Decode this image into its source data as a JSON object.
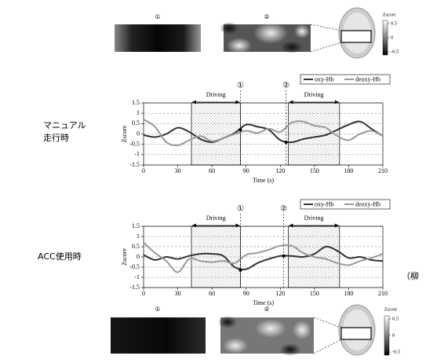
{
  "heatmaps": {
    "top": {
      "labels": [
        "①",
        "②"
      ],
      "colorbar": {
        "title": "Zscore",
        "ticks": [
          0.5,
          0,
          -0.5
        ]
      }
    },
    "bottom": {
      "labels": [
        "①",
        "②"
      ],
      "colorbar": {
        "title": "Zscore",
        "ticks": [
          0.5,
          0,
          -0.5
        ]
      }
    }
  },
  "side_labels": [
    [
      "マニュアル",
      "走行時"
    ],
    [
      "ACC使用時"
    ]
  ],
  "citation": "（柳",
  "chart_data": [
    {
      "type": "line",
      "xlabel": "Time (s)",
      "ylabel": "Zscore",
      "x": [
        0,
        10,
        20,
        30,
        40,
        50,
        60,
        70,
        80,
        90,
        100,
        110,
        120,
        130,
        140,
        150,
        160,
        170,
        180,
        190,
        200,
        210
      ],
      "series": [
        {
          "name": "oxy-Hb",
          "color": "#333333",
          "values": [
            -0.05,
            -0.15,
            0.0,
            0.3,
            0.1,
            -0.25,
            -0.4,
            -0.2,
            0.05,
            0.45,
            0.35,
            0.2,
            -0.3,
            -0.4,
            -0.25,
            -0.15,
            -0.05,
            0.2,
            0.45,
            0.6,
            0.25,
            -0.1
          ]
        },
        {
          "name": "deoxy-Hb",
          "color": "#999999",
          "values": [
            0.7,
            0.35,
            -0.4,
            -0.55,
            -0.3,
            -0.1,
            -0.35,
            -0.2,
            0.0,
            0.15,
            0.05,
            0.25,
            0.1,
            0.55,
            0.6,
            0.4,
            0.3,
            -0.1,
            -0.3,
            0.0,
            0.15,
            -0.1
          ]
        }
      ],
      "xlim": [
        0,
        210
      ],
      "ylim": [
        -1.5,
        1.5
      ],
      "xticks": [
        0,
        30,
        60,
        90,
        120,
        150,
        180,
        210
      ],
      "yticks": [
        1.5,
        1,
        0.5,
        0,
        -0.5,
        -1,
        -1.5
      ],
      "grid": true,
      "shaded_spans": [
        {
          "start": 42,
          "end": 85,
          "label": "Driving"
        },
        {
          "start": 127,
          "end": 172,
          "label": "Driving"
        }
      ],
      "markers": [
        {
          "x": 85,
          "y": 0.2,
          "label": "①"
        },
        {
          "x": 125,
          "y": -0.4,
          "label": "②"
        }
      ]
    },
    {
      "type": "line",
      "xlabel": "Time (s)",
      "ylabel": "Zscore",
      "x": [
        0,
        10,
        20,
        30,
        40,
        50,
        60,
        70,
        80,
        90,
        100,
        110,
        120,
        130,
        140,
        150,
        160,
        170,
        180,
        190,
        200,
        210
      ],
      "series": [
        {
          "name": "oxy-Hb",
          "color": "#333333",
          "values": [
            0.1,
            -0.15,
            0.0,
            -0.1,
            0.05,
            0.15,
            0.15,
            0.05,
            -0.5,
            -0.6,
            -0.3,
            -0.1,
            0.05,
            0.05,
            0.0,
            0.15,
            0.5,
            0.3,
            -0.05,
            0.0,
            -0.15,
            -0.2
          ]
        },
        {
          "name": "deoxy-Hb",
          "color": "#999999",
          "values": [
            0.7,
            0.2,
            -0.2,
            -0.75,
            -0.1,
            -0.2,
            -0.25,
            -0.2,
            -0.3,
            0.1,
            0.2,
            0.35,
            0.55,
            0.55,
            0.2,
            0.0,
            -0.1,
            -0.3,
            -0.4,
            -0.2,
            -0.05,
            0.15
          ]
        }
      ],
      "xlim": [
        0,
        210
      ],
      "ylim": [
        -1.5,
        1.5
      ],
      "xticks": [
        0,
        30,
        60,
        90,
        120,
        150,
        180,
        210
      ],
      "yticks": [
        1.5,
        1,
        0.5,
        0,
        -0.5,
        -1,
        -1.5
      ],
      "grid": true,
      "shaded_spans": [
        {
          "start": 42,
          "end": 85,
          "label": "Driving"
        },
        {
          "start": 127,
          "end": 172,
          "label": "Driving"
        }
      ],
      "markers": [
        {
          "x": 85,
          "y": -0.65,
          "label": "①"
        },
        {
          "x": 123,
          "y": 0.05,
          "label": "②"
        }
      ]
    }
  ]
}
